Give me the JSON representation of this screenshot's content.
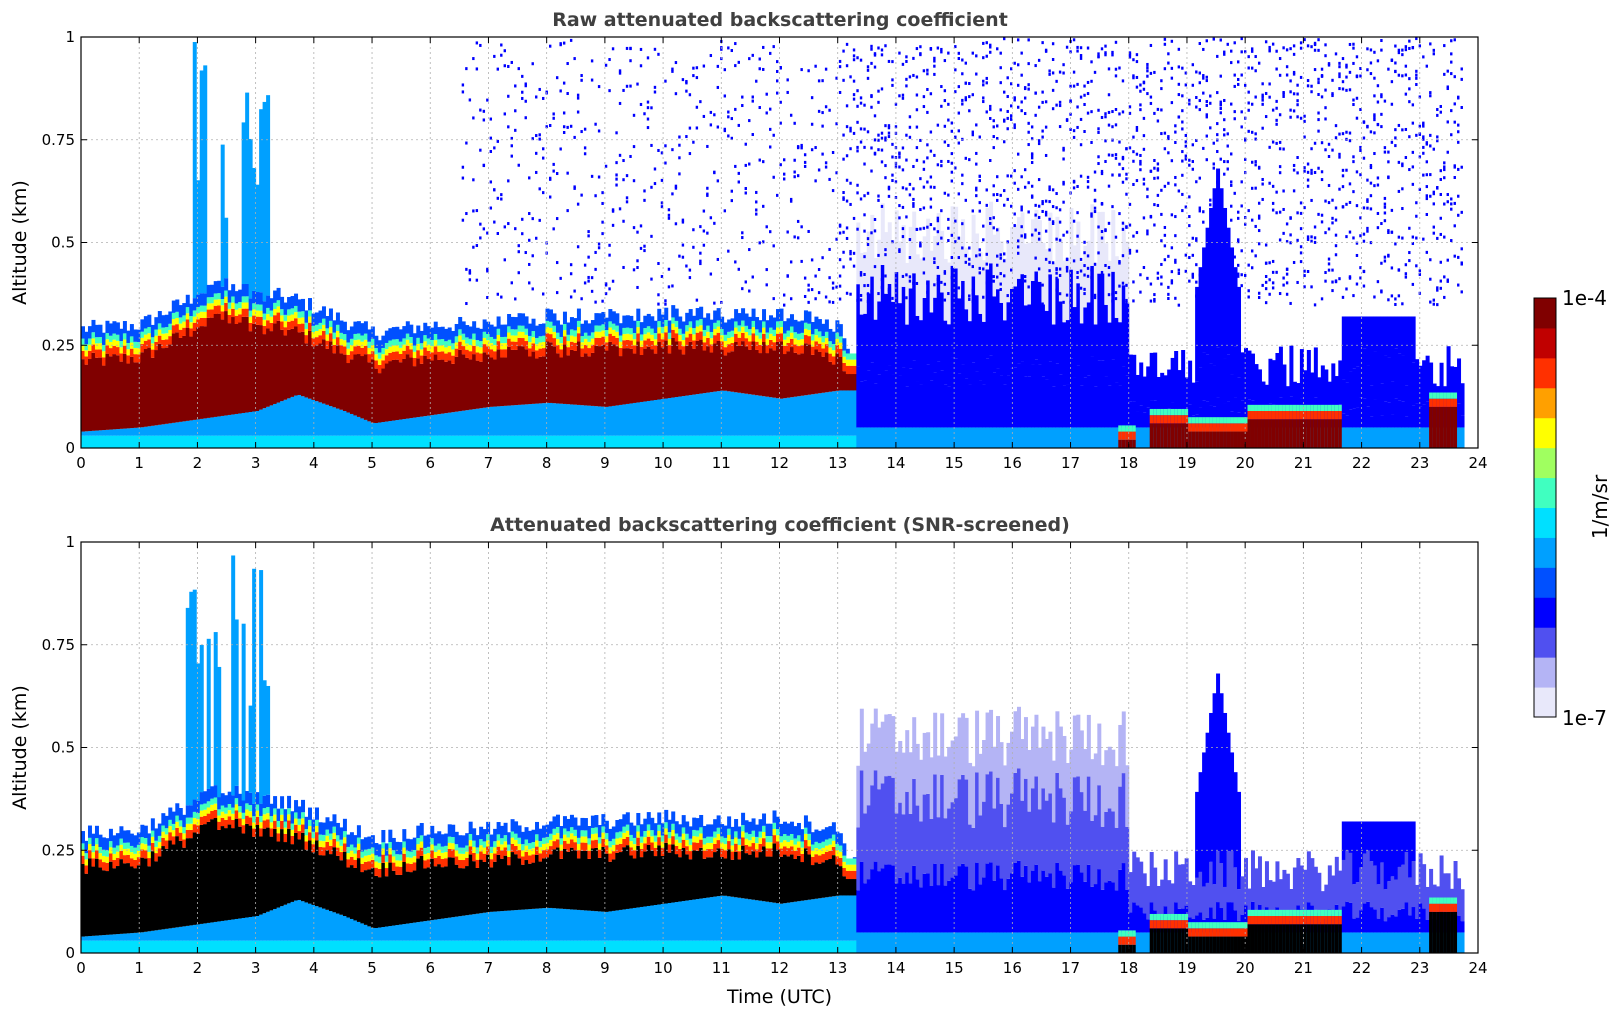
{
  "chart_data": [
    {
      "type": "heatmap",
      "title": "Raw attenuated backscattering coefficient",
      "xlabel": "",
      "ylabel": "Altitude (km)",
      "xlim": [
        0,
        24
      ],
      "ylim": [
        0,
        1
      ],
      "xticks": [
        "0",
        "1",
        "2",
        "3",
        "4",
        "5",
        "6",
        "7",
        "8",
        "9",
        "10",
        "11",
        "12",
        "13",
        "14",
        "15",
        "16",
        "17",
        "18",
        "19",
        "20",
        "21",
        "22",
        "23",
        "24"
      ],
      "yticks": [
        "0",
        "0.25",
        "0.5",
        "0.75",
        "1"
      ],
      "grid": true,
      "data_end_hour": 23.7,
      "layer_top_km": [
        [
          0,
          0.29
        ],
        [
          1,
          0.3
        ],
        [
          1.8,
          0.36
        ],
        [
          2.3,
          0.4
        ],
        [
          3,
          0.38
        ],
        [
          3.7,
          0.36
        ],
        [
          4.5,
          0.31
        ],
        [
          5,
          0.28
        ],
        [
          6,
          0.3
        ],
        [
          7,
          0.3
        ],
        [
          8,
          0.32
        ],
        [
          9,
          0.32
        ],
        [
          10,
          0.33
        ],
        [
          11,
          0.32
        ],
        [
          12,
          0.33
        ],
        [
          13,
          0.3
        ],
        [
          13.2,
          0.22
        ]
      ],
      "core_bottom_km": [
        [
          0,
          0.04
        ],
        [
          1,
          0.05
        ],
        [
          2,
          0.07
        ],
        [
          3,
          0.09
        ],
        [
          3.7,
          0.13
        ],
        [
          4.5,
          0.09
        ],
        [
          5,
          0.06
        ],
        [
          6,
          0.08
        ],
        [
          7,
          0.1
        ],
        [
          8,
          0.11
        ],
        [
          9,
          0.1
        ],
        [
          10,
          0.12
        ],
        [
          11,
          0.14
        ],
        [
          12,
          0.12
        ],
        [
          13,
          0.14
        ]
      ],
      "low_layer": [
        [
          17.8,
          18.1,
          0.02
        ],
        [
          18.3,
          19.0,
          0.06
        ],
        [
          19.0,
          20.0,
          0.04
        ],
        [
          20.0,
          21.6,
          0.07
        ],
        [
          23.1,
          23.6,
          0.1
        ]
      ]
    },
    {
      "type": "heatmap",
      "title": "Attenuated backscattering coefficient (SNR-screened)",
      "xlabel": "Time (UTC)",
      "ylabel": "Altitude (km)",
      "xlim": [
        0,
        24
      ],
      "ylim": [
        0,
        1
      ],
      "xticks": [
        "0",
        "1",
        "2",
        "3",
        "4",
        "5",
        "6",
        "7",
        "8",
        "9",
        "10",
        "11",
        "12",
        "13",
        "14",
        "15",
        "16",
        "17",
        "18",
        "19",
        "20",
        "21",
        "22",
        "23",
        "24"
      ],
      "yticks": [
        "0",
        "0.25",
        "0.5",
        "0.75",
        "1"
      ],
      "grid": true,
      "data_end_hour": 23.7,
      "layer_top_km": [
        [
          0,
          0.29
        ],
        [
          1,
          0.3
        ],
        [
          1.8,
          0.36
        ],
        [
          2.3,
          0.4
        ],
        [
          3,
          0.38
        ],
        [
          3.7,
          0.36
        ],
        [
          4.5,
          0.31
        ],
        [
          5,
          0.28
        ],
        [
          6,
          0.3
        ],
        [
          7,
          0.3
        ],
        [
          8,
          0.32
        ],
        [
          9,
          0.32
        ],
        [
          10,
          0.33
        ],
        [
          11,
          0.32
        ],
        [
          12,
          0.33
        ],
        [
          13,
          0.3
        ],
        [
          13.2,
          0.22
        ]
      ],
      "core_bottom_km": [
        [
          0,
          0.04
        ],
        [
          1,
          0.05
        ],
        [
          2,
          0.07
        ],
        [
          3,
          0.09
        ],
        [
          3.7,
          0.13
        ],
        [
          4.5,
          0.09
        ],
        [
          5,
          0.06
        ],
        [
          6,
          0.08
        ],
        [
          7,
          0.1
        ],
        [
          8,
          0.11
        ],
        [
          9,
          0.1
        ],
        [
          10,
          0.12
        ],
        [
          11,
          0.14
        ],
        [
          12,
          0.12
        ],
        [
          13,
          0.14
        ]
      ],
      "low_layer": [
        [
          17.8,
          18.1,
          0.02
        ],
        [
          18.3,
          19.0,
          0.06
        ],
        [
          19.0,
          20.0,
          0.04
        ],
        [
          20.0,
          21.6,
          0.07
        ],
        [
          23.1,
          23.6,
          0.1
        ]
      ]
    }
  ],
  "colorbar": {
    "label": "1/m/sr",
    "max_label": "1e-4",
    "min_label": "1e-7",
    "scale": "log",
    "colormap": [
      "#e8e8fa",
      "#b4b4f5",
      "#5050f0",
      "#0000ff",
      "#0050ff",
      "#00a0ff",
      "#00e0ff",
      "#40ffc0",
      "#a0ff60",
      "#ffff00",
      "#ffa000",
      "#ff3000",
      "#c00000",
      "#800000"
    ],
    "saturated_color": "#000000"
  }
}
